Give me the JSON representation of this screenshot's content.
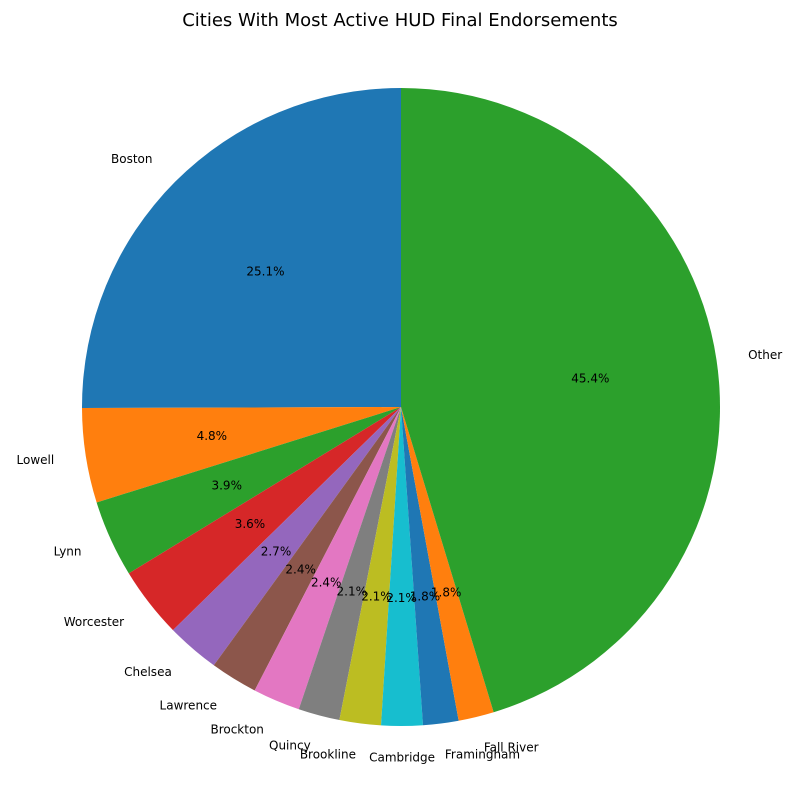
{
  "chart_data": {
    "type": "pie",
    "title": "Cities With Most Active HUD Final Endorsements",
    "start_angle_deg": 90,
    "direction": "counterclockwise",
    "slices": [
      {
        "label": "Boston",
        "percent": 25.1,
        "pct_text": "25.1%",
        "color": "#1f77b4"
      },
      {
        "label": "Lowell",
        "percent": 4.8,
        "pct_text": "4.8%",
        "color": "#ff7f0e"
      },
      {
        "label": "Lynn",
        "percent": 3.9,
        "pct_text": "3.9%",
        "color": "#2ca02c"
      },
      {
        "label": "Worcester",
        "percent": 3.6,
        "pct_text": "3.6%",
        "color": "#d62728"
      },
      {
        "label": "Chelsea",
        "percent": 2.7,
        "pct_text": "2.7%",
        "color": "#9467bd"
      },
      {
        "label": "Lawrence",
        "percent": 2.4,
        "pct_text": "2.4%",
        "color": "#8c564b"
      },
      {
        "label": "Brockton",
        "percent": 2.4,
        "pct_text": "2.4%",
        "color": "#e377c2"
      },
      {
        "label": "Quincy",
        "percent": 2.1,
        "pct_text": "2.1%",
        "color": "#7f7f7f"
      },
      {
        "label": "Brookline",
        "percent": 2.1,
        "pct_text": "2.1%",
        "color": "#bcbd22"
      },
      {
        "label": "Cambridge",
        "percent": 2.1,
        "pct_text": "2.1%",
        "color": "#17becf"
      },
      {
        "label": "Framingham",
        "percent": 1.8,
        "pct_text": "1.8%",
        "color": "#1f77b4"
      },
      {
        "label": "Fall River",
        "percent": 1.8,
        "pct_text": "1.8%",
        "color": "#ff7f0e"
      },
      {
        "label": "Other",
        "percent": 45.4,
        "pct_text": "45.4%",
        "color": "#2ca02c"
      }
    ]
  }
}
